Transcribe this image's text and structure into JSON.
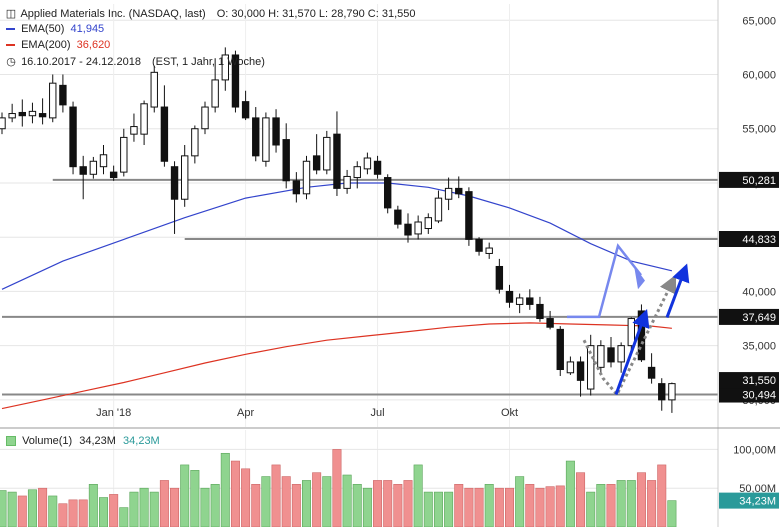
{
  "header": {
    "instrument": "Applied Materials Inc. (NASDAQ, last)",
    "ohlc": "O: 30,000   H: 31,570   L: 28,790   C: 31,550",
    "ema50_label": "EMA(50)",
    "ema50_value": "41,945",
    "ema200_label": "EMA(200)",
    "ema200_value": "36,620",
    "range": "16.10.2017 - 24.12.2018",
    "settings": "(EST, 1 Jahr, 1 Woche)",
    "volume_label": "Volume(1)",
    "volume_value1": "34,23M",
    "volume_value2": "34,23M"
  },
  "colors": {
    "ema50": "#3344cc",
    "ema200": "#dd3322",
    "vol_up": "#8fd48f",
    "vol_down": "#f09090",
    "hline": "#888888",
    "arrow_blue": "#1133dd",
    "arrow_light": "#7788ee",
    "arrow_gray": "#888888"
  },
  "chart_data": {
    "type": "candlestick",
    "interval": "weekly",
    "ylim": [
      27.5,
      66.5
    ],
    "yticks": [
      "65,000",
      "60,000",
      "55,000",
      "50,000",
      "45,000",
      "40,000",
      "35,000",
      "30,000"
    ],
    "ytick_values": [
      65,
      60,
      55,
      50,
      45,
      40,
      35,
      30
    ],
    "xticks": [
      {
        "label": "Jan '18",
        "week": 11
      },
      {
        "label": "Apr",
        "week": 24
      },
      {
        "label": "Jul",
        "week": 37
      },
      {
        "label": "Okt",
        "week": 50
      }
    ],
    "ohlc": [
      {
        "o": 55.0,
        "h": 56.5,
        "l": 54.5,
        "c": 56.0
      },
      {
        "o": 56.0,
        "h": 57.3,
        "l": 55.6,
        "c": 56.4
      },
      {
        "o": 56.5,
        "h": 57.7,
        "l": 55.2,
        "c": 56.2
      },
      {
        "o": 56.2,
        "h": 57.4,
        "l": 55.5,
        "c": 56.6
      },
      {
        "o": 56.4,
        "h": 57.8,
        "l": 55.4,
        "c": 56.1
      },
      {
        "o": 56.0,
        "h": 60.0,
        "l": 55.6,
        "c": 59.2
      },
      {
        "o": 59.0,
        "h": 60.0,
        "l": 56.5,
        "c": 57.2
      },
      {
        "o": 57.0,
        "h": 57.5,
        "l": 50.8,
        "c": 51.5
      },
      {
        "o": 51.5,
        "h": 52.5,
        "l": 48.5,
        "c": 50.8
      },
      {
        "o": 50.8,
        "h": 52.4,
        "l": 50.4,
        "c": 52.0
      },
      {
        "o": 51.5,
        "h": 53.5,
        "l": 50.8,
        "c": 52.6
      },
      {
        "o": 51.0,
        "h": 51.6,
        "l": 50.2,
        "c": 50.5
      },
      {
        "o": 51.0,
        "h": 55.0,
        "l": 50.6,
        "c": 54.2
      },
      {
        "o": 54.5,
        "h": 56.4,
        "l": 53.8,
        "c": 55.2
      },
      {
        "o": 54.5,
        "h": 57.6,
        "l": 53.5,
        "c": 57.3
      },
      {
        "o": 57.0,
        "h": 60.8,
        "l": 56.5,
        "c": 60.2
      },
      {
        "o": 57.0,
        "h": 59.0,
        "l": 51.5,
        "c": 52.0
      },
      {
        "o": 51.5,
        "h": 52.0,
        "l": 45.3,
        "c": 48.5
      },
      {
        "o": 48.5,
        "h": 53.5,
        "l": 47.8,
        "c": 52.5
      },
      {
        "o": 52.5,
        "h": 55.3,
        "l": 51.8,
        "c": 55.0
      },
      {
        "o": 55.0,
        "h": 57.5,
        "l": 54.5,
        "c": 57.0
      },
      {
        "o": 57.0,
        "h": 61.5,
        "l": 56.5,
        "c": 59.5
      },
      {
        "o": 59.5,
        "h": 62.5,
        "l": 58.5,
        "c": 61.8
      },
      {
        "o": 61.8,
        "h": 62.2,
        "l": 56.5,
        "c": 57.0
      },
      {
        "o": 57.5,
        "h": 58.5,
        "l": 55.8,
        "c": 56.0
      },
      {
        "o": 56.0,
        "h": 57.0,
        "l": 52.0,
        "c": 52.5
      },
      {
        "o": 52.0,
        "h": 56.5,
        "l": 51.5,
        "c": 56.0
      },
      {
        "o": 56.0,
        "h": 56.8,
        "l": 52.8,
        "c": 53.5
      },
      {
        "o": 54.0,
        "h": 55.5,
        "l": 49.5,
        "c": 50.2
      },
      {
        "o": 50.2,
        "h": 51.0,
        "l": 48.2,
        "c": 49.0
      },
      {
        "o": 49.0,
        "h": 52.5,
        "l": 48.5,
        "c": 52.0
      },
      {
        "o": 52.5,
        "h": 54.5,
        "l": 50.8,
        "c": 51.2
      },
      {
        "o": 51.2,
        "h": 54.8,
        "l": 50.8,
        "c": 54.2
      },
      {
        "o": 54.5,
        "h": 56.6,
        "l": 48.8,
        "c": 49.5
      },
      {
        "o": 49.5,
        "h": 51.2,
        "l": 49.0,
        "c": 50.6
      },
      {
        "o": 50.5,
        "h": 52.0,
        "l": 49.5,
        "c": 51.5
      },
      {
        "o": 51.3,
        "h": 52.8,
        "l": 50.8,
        "c": 52.3
      },
      {
        "o": 52.0,
        "h": 52.5,
        "l": 50.4,
        "c": 50.8
      },
      {
        "o": 50.5,
        "h": 50.8,
        "l": 47.2,
        "c": 47.7
      },
      {
        "o": 47.5,
        "h": 47.9,
        "l": 45.8,
        "c": 46.2
      },
      {
        "o": 46.2,
        "h": 47.2,
        "l": 44.5,
        "c": 45.2
      },
      {
        "o": 45.3,
        "h": 47.0,
        "l": 44.8,
        "c": 46.4
      },
      {
        "o": 45.8,
        "h": 47.2,
        "l": 45.3,
        "c": 46.8
      },
      {
        "o": 46.5,
        "h": 49.3,
        "l": 46.3,
        "c": 48.6
      },
      {
        "o": 48.5,
        "h": 50.5,
        "l": 47.5,
        "c": 49.5
      },
      {
        "o": 49.5,
        "h": 50.6,
        "l": 48.6,
        "c": 49.0
      },
      {
        "o": 49.2,
        "h": 49.6,
        "l": 44.2,
        "c": 44.8
      },
      {
        "o": 44.8,
        "h": 45.0,
        "l": 43.3,
        "c": 43.7
      },
      {
        "o": 43.5,
        "h": 44.5,
        "l": 43.0,
        "c": 44.0
      },
      {
        "o": 42.3,
        "h": 43.0,
        "l": 39.8,
        "c": 40.2
      },
      {
        "o": 40.0,
        "h": 40.6,
        "l": 38.5,
        "c": 39.0
      },
      {
        "o": 38.8,
        "h": 39.8,
        "l": 38.0,
        "c": 39.4
      },
      {
        "o": 39.4,
        "h": 40.2,
        "l": 38.3,
        "c": 38.8
      },
      {
        "o": 38.8,
        "h": 39.5,
        "l": 37.2,
        "c": 37.5
      },
      {
        "o": 37.5,
        "h": 38.2,
        "l": 36.5,
        "c": 36.7
      },
      {
        "o": 36.5,
        "h": 36.8,
        "l": 32.2,
        "c": 32.8
      },
      {
        "o": 32.5,
        "h": 34.0,
        "l": 32.3,
        "c": 33.5
      },
      {
        "o": 33.5,
        "h": 34.0,
        "l": 30.3,
        "c": 31.8
      },
      {
        "o": 31.0,
        "h": 36.0,
        "l": 30.4,
        "c": 35.0
      },
      {
        "o": 33.0,
        "h": 35.5,
        "l": 32.3,
        "c": 35.0
      },
      {
        "o": 34.8,
        "h": 35.8,
        "l": 33.0,
        "c": 33.5
      },
      {
        "o": 33.5,
        "h": 35.3,
        "l": 32.5,
        "c": 35.0
      },
      {
        "o": 35.0,
        "h": 37.6,
        "l": 34.5,
        "c": 37.5
      },
      {
        "o": 38.2,
        "h": 38.8,
        "l": 33.5,
        "c": 33.7
      },
      {
        "o": 33.0,
        "h": 34.3,
        "l": 31.5,
        "c": 32.0
      },
      {
        "o": 31.5,
        "h": 32.0,
        "l": 29.0,
        "c": 30.0
      },
      {
        "o": 30.0,
        "h": 31.6,
        "l": 28.8,
        "c": 31.5
      }
    ],
    "ema50": [
      [
        0,
        40.2
      ],
      [
        6,
        42.8
      ],
      [
        12,
        44.8
      ],
      [
        18,
        46.8
      ],
      [
        24,
        48.6
      ],
      [
        30,
        49.6
      ],
      [
        34,
        50.0
      ],
      [
        38,
        50.0
      ],
      [
        42,
        49.6
      ],
      [
        46,
        48.8
      ],
      [
        50,
        47.7
      ],
      [
        54,
        46.3
      ],
      [
        58,
        44.4
      ],
      [
        62,
        42.8
      ],
      [
        66,
        41.9
      ]
    ],
    "ema200": [
      [
        0,
        29.2
      ],
      [
        4,
        30.0
      ],
      [
        8,
        30.8
      ],
      [
        12,
        31.6
      ],
      [
        16,
        32.5
      ],
      [
        20,
        33.4
      ],
      [
        24,
        34.2
      ],
      [
        28,
        34.9
      ],
      [
        32,
        35.5
      ],
      [
        36,
        35.9
      ],
      [
        40,
        36.3
      ],
      [
        44,
        36.7
      ],
      [
        48,
        37.0
      ],
      [
        52,
        37.1
      ],
      [
        56,
        37.0
      ],
      [
        60,
        36.9
      ],
      [
        64,
        36.8
      ],
      [
        66,
        36.6
      ]
    ],
    "hlines": [
      {
        "value": 50.281,
        "label": "50,281",
        "from_week": 5
      },
      {
        "value": 44.833,
        "label": "44,833",
        "from_week": 18
      },
      {
        "value": 37.649,
        "label": "37,649",
        "from_week": 0
      },
      {
        "value": 30.494,
        "label": "30,494",
        "from_week": 0
      }
    ],
    "last_price": {
      "value": 31.55,
      "label": "31,550"
    },
    "volume_ylim": [
      0,
      125
    ],
    "volume_ticks": [
      {
        "value": 100,
        "label": "100,00M"
      },
      {
        "value": 50,
        "label": "50,00M"
      }
    ],
    "volume_last_label": "34,23M",
    "volume": [
      47,
      45,
      40,
      48,
      50,
      40,
      30,
      35,
      35,
      55,
      38,
      42,
      25,
      45,
      50,
      45,
      60,
      50,
      80,
      73,
      50,
      55,
      95,
      85,
      75,
      55,
      65,
      80,
      65,
      55,
      60,
      70,
      65,
      100,
      67,
      55,
      50,
      60,
      60,
      55,
      60,
      80,
      45,
      45,
      45,
      55,
      50,
      50,
      55,
      50,
      50,
      65,
      55,
      50,
      52,
      53,
      85,
      70,
      45,
      55,
      55,
      60,
      60,
      70,
      60,
      80,
      34
    ]
  }
}
